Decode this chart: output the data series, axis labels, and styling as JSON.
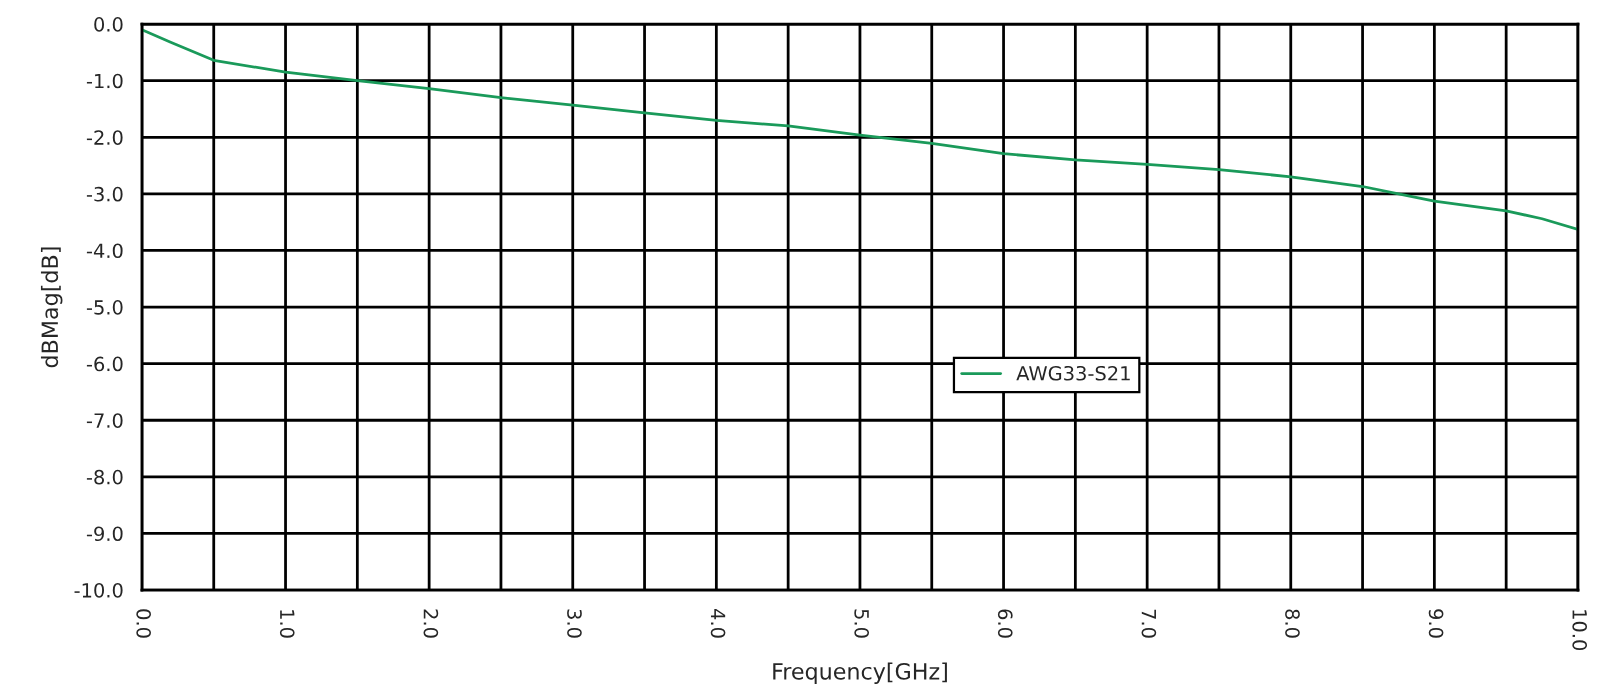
{
  "chart_data": {
    "type": "line",
    "xlabel": "Frequency[GHz]",
    "ylabel": "dBMag[dB]",
    "x": [
      0,
      0.2,
      0.5,
      1.0,
      1.5,
      2.0,
      2.5,
      3.0,
      3.5,
      4.0,
      4.5,
      5.0,
      5.5,
      6.0,
      6.5,
      7.0,
      7.5,
      8.0,
      8.5,
      8.75,
      9.0,
      9.5,
      9.75,
      10.0
    ],
    "series": [
      {
        "name": "AWG33-S21",
        "color": "#1a9a5a",
        "values": [
          -0.1,
          -0.32,
          -0.64,
          -0.85,
          -1.0,
          -1.14,
          -1.3,
          -1.43,
          -1.57,
          -1.7,
          -1.8,
          -1.96,
          -2.11,
          -2.29,
          -2.4,
          -2.48,
          -2.57,
          -2.7,
          -2.87,
          -3.0,
          -3.13,
          -3.3,
          -3.44,
          -3.63
        ]
      }
    ],
    "xlim": [
      0,
      10
    ],
    "ylim": [
      -10,
      0
    ],
    "xticks": [
      {
        "value": 0,
        "label": "0.0"
      },
      {
        "value": 0.5,
        "label": null
      },
      {
        "value": 1,
        "label": "1.0"
      },
      {
        "value": 1.5,
        "label": null
      },
      {
        "value": 2,
        "label": "2.0"
      },
      {
        "value": 2.5,
        "label": null
      },
      {
        "value": 3,
        "label": "3.0"
      },
      {
        "value": 3.5,
        "label": null
      },
      {
        "value": 4,
        "label": "4.0"
      },
      {
        "value": 4.5,
        "label": null
      },
      {
        "value": 5,
        "label": "5.0"
      },
      {
        "value": 5.5,
        "label": null
      },
      {
        "value": 6,
        "label": "6.0"
      },
      {
        "value": 6.5,
        "label": null
      },
      {
        "value": 7,
        "label": "7.0"
      },
      {
        "value": 7.5,
        "label": null
      },
      {
        "value": 8,
        "label": "8.0"
      },
      {
        "value": 8.5,
        "label": null
      },
      {
        "value": 9,
        "label": "9.0"
      },
      {
        "value": 9.5,
        "label": null
      },
      {
        "value": 10,
        "label": "10.0"
      }
    ],
    "yticks": [
      {
        "value": 0,
        "label": "0.0"
      },
      {
        "value": -1,
        "label": "-1.0"
      },
      {
        "value": -2,
        "label": "-2.0"
      },
      {
        "value": -3,
        "label": "-3.0"
      },
      {
        "value": -4,
        "label": "-4.0"
      },
      {
        "value": -5,
        "label": "-5.0"
      },
      {
        "value": -6,
        "label": "-6.0"
      },
      {
        "value": -7,
        "label": "-7.0"
      },
      {
        "value": -8,
        "label": "-8.0"
      },
      {
        "value": -9,
        "label": "-9.0"
      },
      {
        "value": -10,
        "label": "-10.0"
      }
    ],
    "grid": true,
    "legend": "center",
    "marker": "none",
    "line_style": "solid"
  }
}
